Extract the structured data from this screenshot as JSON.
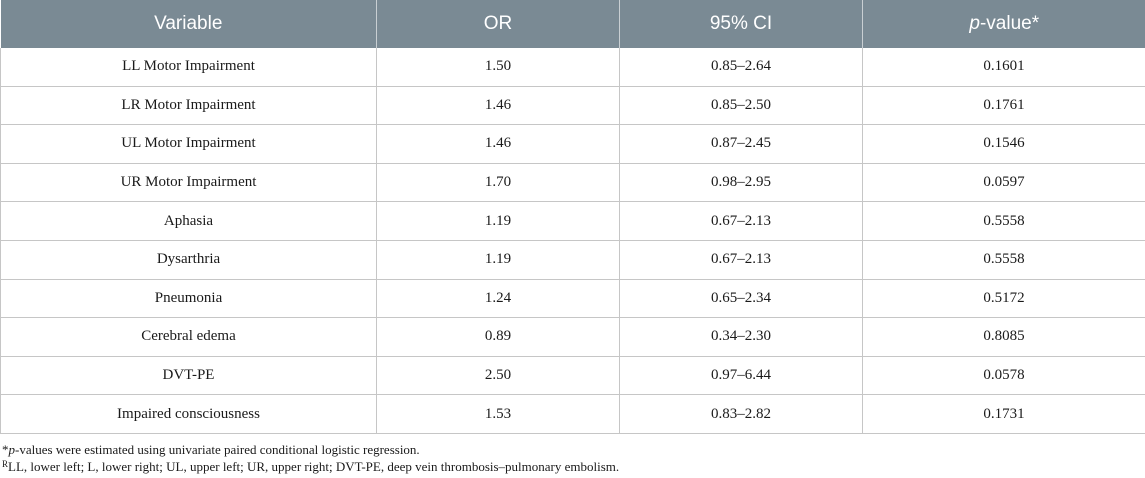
{
  "table": {
    "headers": {
      "variable": "Variable",
      "or": "OR",
      "ci": "95% CI",
      "p_italic": "p",
      "p_rest": "-value*"
    },
    "rows": [
      {
        "variable": "LL Motor Impairment",
        "or": "1.50",
        "ci": "0.85–2.64",
        "p": "0.1601"
      },
      {
        "variable": "LR Motor Impairment",
        "or": "1.46",
        "ci": "0.85–2.50",
        "p": "0.1761"
      },
      {
        "variable": "UL Motor Impairment",
        "or": "1.46",
        "ci": "0.87–2.45",
        "p": "0.1546"
      },
      {
        "variable": "UR Motor Impairment",
        "or": "1.70",
        "ci": "0.98–2.95",
        "p": "0.0597"
      },
      {
        "variable": "Aphasia",
        "or": "1.19",
        "ci": "0.67–2.13",
        "p": "0.5558"
      },
      {
        "variable": "Dysarthria",
        "or": "1.19",
        "ci": "0.67–2.13",
        "p": "0.5558"
      },
      {
        "variable": "Pneumonia",
        "or": "1.24",
        "ci": "0.65–2.34",
        "p": "0.5172"
      },
      {
        "variable": "Cerebral edema",
        "or": "0.89",
        "ci": "0.34–2.30",
        "p": "0.8085"
      },
      {
        "variable": "DVT-PE",
        "or": "2.50",
        "ci": "0.97–6.44",
        "p": "0.0578"
      },
      {
        "variable": "Impaired consciousness",
        "or": "1.53",
        "ci": "0.83–2.82",
        "p": "0.1731"
      }
    ]
  },
  "footnotes": {
    "fn1_star": "*",
    "fn1_italic": "p",
    "fn1_rest": "-values were estimated using univariate paired conditional logistic regression.",
    "fn2_sup": "R",
    "fn2_rest": "LL, lower left; L, lower right; UL, upper left; UR, upper right; DVT-PE, deep vein thrombosis–pulmonary embolism."
  }
}
